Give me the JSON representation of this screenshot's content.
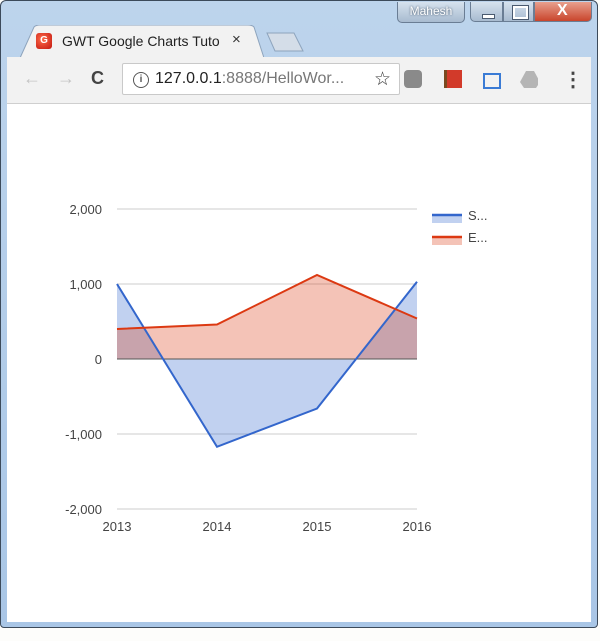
{
  "window": {
    "profile_name": "Mahesh",
    "buttons": [
      "minimize",
      "maximize",
      "close"
    ]
  },
  "browser": {
    "tab": {
      "title": "GWT Google Charts Tuto",
      "favicon": "gwt-logo-icon",
      "close_label": "×"
    },
    "nav": {
      "back": "←",
      "forward": "→",
      "reload": "C"
    },
    "url": {
      "host": "127.0.0.1",
      "rest": ":8888/HelloWor..."
    },
    "extensions": [
      "shield-extension-icon",
      "book-extension-icon",
      "speed-dial-extension-icon",
      "drive-extension-icon"
    ],
    "menu": "⋮"
  },
  "chart_data": {
    "type": "area",
    "title": "",
    "xlabel": "",
    "ylabel": "",
    "categories": [
      "2013",
      "2014",
      "2015",
      "2016"
    ],
    "series": [
      {
        "name": "S...",
        "color": "#3366cc",
        "fill": "#c0cff0",
        "values": [
          1000,
          -1170,
          -660,
          1030
        ]
      },
      {
        "name": "E...",
        "color": "#dc3912",
        "fill": "#f5c3b8",
        "values": [
          400,
          460,
          1120,
          540
        ]
      }
    ],
    "yticks": [
      "2,000",
      "1,000",
      "0",
      "-1,000",
      "-2,000"
    ],
    "ylim": [
      -2000,
      2000
    ],
    "grid": true,
    "legend_position": "right"
  }
}
